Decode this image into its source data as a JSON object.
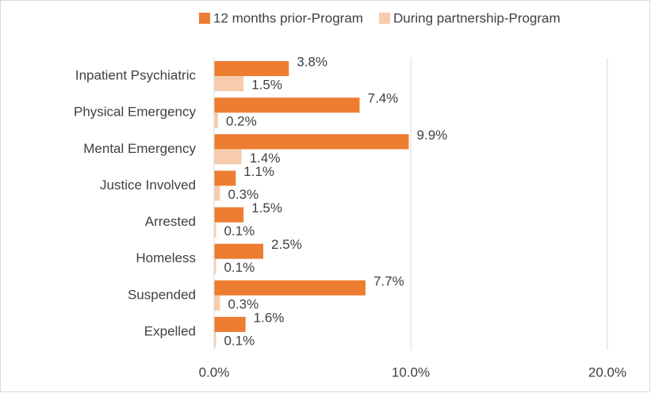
{
  "chart_data": {
    "type": "hbar",
    "categories": [
      "Inpatient Psychiatric",
      "Physical Emergency",
      "Mental Emergency",
      "Justice Involved",
      "Arrested",
      "Homeless",
      "Suspended",
      "Expelled"
    ],
    "series": [
      {
        "name": "12 months prior-Program",
        "color": "#ED7D31",
        "values": [
          3.8,
          7.4,
          9.9,
          1.1,
          1.5,
          2.5,
          7.7,
          1.6
        ],
        "value_labels": [
          "3.8%",
          "7.4%",
          "9.9%",
          "1.1%",
          "1.5%",
          "2.5%",
          "7.7%",
          "1.6%"
        ]
      },
      {
        "name": "During partnership-Program",
        "color": "#F8CBAD",
        "values": [
          1.5,
          0.2,
          1.4,
          0.3,
          0.1,
          0.1,
          0.3,
          0.1
        ],
        "value_labels": [
          "1.5%",
          "0.2%",
          "1.4%",
          "0.3%",
          "0.1%",
          "0.1%",
          "0.3%",
          "0.1%"
        ]
      }
    ],
    "xlim": [
      0,
      20
    ],
    "xticks": [
      {
        "value": 0,
        "label": "0.0%"
      },
      {
        "value": 10,
        "label": "10.0%"
      },
      {
        "value": 20,
        "label": "20.0%"
      }
    ],
    "grid": true,
    "legend": "top"
  }
}
